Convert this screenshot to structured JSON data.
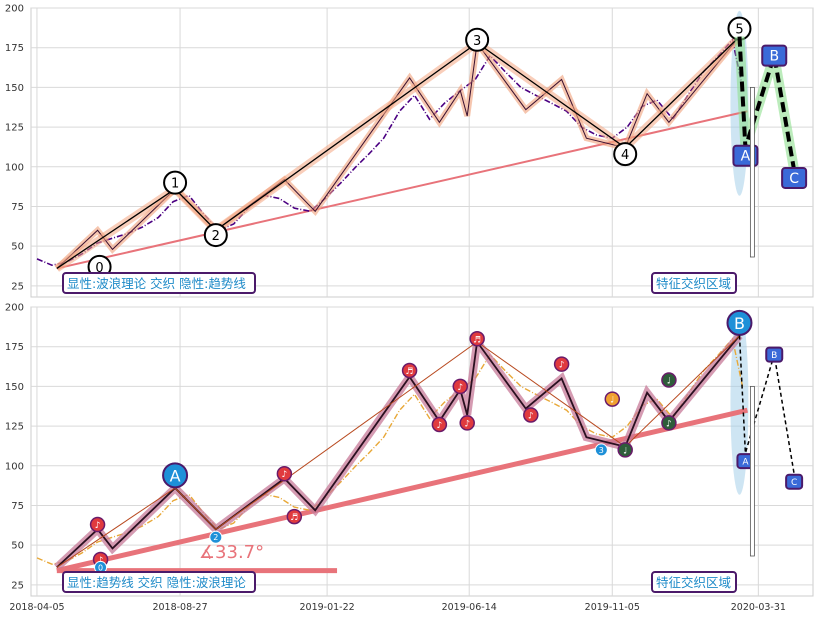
{
  "chart_data": [
    {
      "type": "line",
      "panel": "top",
      "ylim": [
        18,
        200
      ],
      "yticks": [
        25,
        50,
        75,
        100,
        125,
        150,
        175,
        200
      ],
      "xlim": [
        "2018-03-30",
        "2020-05-25"
      ],
      "grid": true,
      "legend": "bottom-left",
      "label_box_left": "显性:波浪理论 交织 隐性:趋势线",
      "label_box_right": "特征交织区域",
      "price_series": {
        "color": "#4b0082",
        "x": [
          "2018-04-05",
          "2018-04-20",
          "2018-05-05",
          "2018-05-20",
          "2018-06-05",
          "2018-06-20",
          "2018-07-05",
          "2018-07-20",
          "2018-08-05",
          "2018-08-20",
          "2018-09-05",
          "2018-09-20",
          "2018-10-05",
          "2018-10-20",
          "2018-11-05",
          "2018-11-20",
          "2018-12-05",
          "2018-12-20",
          "2019-01-05",
          "2019-01-20",
          "2019-02-05",
          "2019-02-20",
          "2019-03-05",
          "2019-03-20",
          "2019-04-05",
          "2019-04-20",
          "2019-05-05",
          "2019-05-20",
          "2019-06-05",
          "2019-06-20",
          "2019-07-05",
          "2019-07-20",
          "2019-08-05",
          "2019-08-20",
          "2019-09-05",
          "2019-09-20",
          "2019-10-05",
          "2019-10-20",
          "2019-11-05",
          "2019-11-20",
          "2019-12-05",
          "2019-12-20",
          "2020-01-05",
          "2020-01-20",
          "2020-02-05",
          "2020-02-20",
          "2020-03-05",
          "2020-03-15"
        ],
        "y": [
          42,
          38,
          40,
          45,
          52,
          55,
          58,
          62,
          68,
          78,
          82,
          70,
          60,
          64,
          75,
          82,
          80,
          74,
          72,
          80,
          90,
          100,
          108,
          118,
          135,
          145,
          130,
          140,
          148,
          155,
          170,
          160,
          150,
          145,
          140,
          135,
          125,
          120,
          118,
          125,
          138,
          142,
          130,
          145,
          160,
          170,
          180,
          150
        ]
      },
      "wave_points": [
        {
          "label": "0",
          "x": "2018-06-07",
          "y": 37
        },
        {
          "label": "1",
          "x": "2018-08-22",
          "y": 90
        },
        {
          "label": "2",
          "x": "2018-10-02",
          "y": 57
        },
        {
          "label": "3",
          "x": "2019-06-22",
          "y": 180
        },
        {
          "label": "4",
          "x": "2019-11-18",
          "y": 108
        },
        {
          "label": "5",
          "x": "2020-03-12",
          "y": 187
        }
      ],
      "wave_path": [
        {
          "x": "2018-04-25",
          "y": 36
        },
        {
          "x": "2018-08-22",
          "y": 86
        },
        {
          "x": "2018-10-02",
          "y": 60
        },
        {
          "x": "2019-06-22",
          "y": 178
        },
        {
          "x": "2019-11-18",
          "y": 112
        },
        {
          "x": "2020-03-12",
          "y": 182
        }
      ],
      "sub_wave_path": [
        {
          "x": "2018-04-25",
          "y": 36
        },
        {
          "x": "2018-06-05",
          "y": 60
        },
        {
          "x": "2018-06-20",
          "y": 48
        },
        {
          "x": "2018-08-22",
          "y": 86
        },
        {
          "x": "2018-10-02",
          "y": 60
        },
        {
          "x": "2018-12-10",
          "y": 92
        },
        {
          "x": "2019-01-10",
          "y": 72
        },
        {
          "x": "2019-04-15",
          "y": 156
        },
        {
          "x": "2019-05-15",
          "y": 128
        },
        {
          "x": "2019-06-05",
          "y": 148
        },
        {
          "x": "2019-06-12",
          "y": 132
        },
        {
          "x": "2019-06-22",
          "y": 178
        },
        {
          "x": "2019-08-10",
          "y": 136
        },
        {
          "x": "2019-09-15",
          "y": 155
        },
        {
          "x": "2019-10-10",
          "y": 118
        },
        {
          "x": "2019-11-18",
          "y": 112
        },
        {
          "x": "2019-12-10",
          "y": 146
        },
        {
          "x": "2020-01-01",
          "y": 128
        },
        {
          "x": "2020-03-12",
          "y": 182
        }
      ],
      "trendline": {
        "color": "#e8737a",
        "from": {
          "x": "2018-04-25",
          "y": 36
        },
        "to": {
          "x": "2020-03-20",
          "y": 135
        }
      },
      "abc_points": [
        {
          "label": "A",
          "x": "2020-03-18",
          "y": 112
        },
        {
          "label": "B",
          "x": "2020-04-16",
          "y": 170
        },
        {
          "label": "C",
          "x": "2020-05-06",
          "y": 98
        }
      ]
    },
    {
      "type": "line",
      "panel": "bottom",
      "ylim": [
        18,
        200
      ],
      "yticks": [
        25,
        50,
        75,
        100,
        125,
        150,
        175,
        200
      ],
      "xticks": [
        "2018-04-05",
        "2018-08-27",
        "2019-01-22",
        "2019-06-14",
        "2019-11-05",
        "2020-03-31"
      ],
      "xlim": [
        "2018-03-30",
        "2020-05-25"
      ],
      "grid": true,
      "legend": "bottom-left",
      "label_box_left": "显性:趋势线 交织 隐性:波浪理论",
      "label_box_right": "特征交织区域",
      "angle_label": "∡33.7°",
      "price_series": {
        "color": "#e8a838",
        "x": [
          "2018-04-05",
          "2018-04-20",
          "2018-05-05",
          "2018-05-20",
          "2018-06-05",
          "2018-06-20",
          "2018-07-05",
          "2018-07-20",
          "2018-08-05",
          "2018-08-20",
          "2018-09-05",
          "2018-09-20",
          "2018-10-05",
          "2018-10-20",
          "2018-11-05",
          "2018-11-20",
          "2018-12-05",
          "2018-12-20",
          "2019-01-05",
          "2019-01-20",
          "2019-02-05",
          "2019-02-20",
          "2019-03-05",
          "2019-03-20",
          "2019-04-05",
          "2019-04-20",
          "2019-05-05",
          "2019-05-20",
          "2019-06-05",
          "2019-06-20",
          "2019-07-05",
          "2019-07-20",
          "2019-08-05",
          "2019-08-20",
          "2019-09-05",
          "2019-09-20",
          "2019-10-05",
          "2019-10-20",
          "2019-11-05",
          "2019-11-20",
          "2019-12-05",
          "2019-12-20",
          "2020-01-05",
          "2020-01-20",
          "2020-02-05",
          "2020-02-20",
          "2020-03-05",
          "2020-03-15"
        ],
        "y": [
          42,
          38,
          40,
          45,
          52,
          55,
          58,
          62,
          68,
          78,
          82,
          70,
          60,
          64,
          75,
          82,
          80,
          74,
          72,
          80,
          90,
          100,
          108,
          118,
          135,
          145,
          130,
          140,
          148,
          155,
          170,
          160,
          150,
          145,
          140,
          135,
          125,
          120,
          118,
          125,
          138,
          142,
          130,
          145,
          160,
          170,
          180,
          150
        ]
      },
      "trend_path": [
        {
          "x": "2018-04-25",
          "y": 36
        },
        {
          "x": "2018-06-05",
          "y": 60
        },
        {
          "x": "2018-06-20",
          "y": 48
        },
        {
          "x": "2018-08-22",
          "y": 86
        },
        {
          "x": "2018-10-02",
          "y": 60
        },
        {
          "x": "2018-12-10",
          "y": 92
        },
        {
          "x": "2019-01-10",
          "y": 72
        },
        {
          "x": "2019-04-15",
          "y": 156
        },
        {
          "x": "2019-05-15",
          "y": 128
        },
        {
          "x": "2019-06-05",
          "y": 148
        },
        {
          "x": "2019-06-12",
          "y": 132
        },
        {
          "x": "2019-06-22",
          "y": 178
        },
        {
          "x": "2019-08-10",
          "y": 136
        },
        {
          "x": "2019-09-15",
          "y": 155
        },
        {
          "x": "2019-10-10",
          "y": 118
        },
        {
          "x": "2019-11-18",
          "y": 112
        },
        {
          "x": "2019-12-10",
          "y": 146
        },
        {
          "x": "2020-01-01",
          "y": 128
        },
        {
          "x": "2020-03-12",
          "y": 182
        }
      ],
      "wave_path": [
        {
          "x": "2018-04-25",
          "y": 36
        },
        {
          "x": "2018-08-22",
          "y": 86
        },
        {
          "x": "2018-10-02",
          "y": 60
        },
        {
          "x": "2019-06-22",
          "y": 178
        },
        {
          "x": "2019-11-18",
          "y": 112
        },
        {
          "x": "2020-03-12",
          "y": 182
        }
      ],
      "markers": [
        {
          "label": "♪",
          "x": "2018-06-05",
          "y": 63,
          "color": "#e03a3e"
        },
        {
          "label": "♪",
          "x": "2018-06-08",
          "y": 41,
          "color": "#e03a3e"
        },
        {
          "label": "♪",
          "x": "2018-12-10",
          "y": 95,
          "color": "#e03a3e"
        },
        {
          "label": "♬",
          "x": "2018-12-20",
          "y": 68,
          "color": "#e03a3e"
        },
        {
          "label": "♬",
          "x": "2019-04-15",
          "y": 160,
          "color": "#e03a3e"
        },
        {
          "label": "♪",
          "x": "2019-05-15",
          "y": 126,
          "color": "#e03a3e"
        },
        {
          "label": "♪",
          "x": "2019-06-05",
          "y": 150,
          "color": "#e03a3e"
        },
        {
          "label": "♪",
          "x": "2019-06-12",
          "y": 127,
          "color": "#e03a3e"
        },
        {
          "label": "♬",
          "x": "2019-06-22",
          "y": 180,
          "color": "#e03a3e"
        },
        {
          "label": "♪",
          "x": "2019-08-15",
          "y": 132,
          "color": "#e03a3e"
        },
        {
          "label": "♪",
          "x": "2019-09-15",
          "y": 164,
          "color": "#e03a3e"
        },
        {
          "label": "♩",
          "x": "2019-11-05",
          "y": 142,
          "color": "#f0a030"
        },
        {
          "label": "♩",
          "x": "2019-11-18",
          "y": 110,
          "color": "#2e5d3a"
        },
        {
          "label": "♩",
          "x": "2020-01-01",
          "y": 154,
          "color": "#2e5d3a"
        },
        {
          "label": "♪",
          "x": "2020-01-01",
          "y": 127,
          "color": "#2e5d3a"
        }
      ],
      "big_labels": [
        {
          "label": "A",
          "x": "2018-08-22",
          "y": 94
        },
        {
          "label": "B",
          "x": "2020-03-12",
          "y": 190
        }
      ],
      "small_labels": [
        {
          "label": "2",
          "x": "2018-10-02",
          "y": 55
        },
        {
          "label": "3",
          "x": "2019-10-25",
          "y": 110
        },
        {
          "label": "0",
          "x": "2018-06-08",
          "y": 36
        }
      ],
      "trendline": {
        "color": "#e8737a",
        "from": {
          "x": "2018-04-25",
          "y": 34
        },
        "to": {
          "x": "2020-03-20",
          "y": 135
        }
      },
      "abc_points": [
        {
          "label": "A",
          "x": "2020-03-18",
          "y": 108
        },
        {
          "label": "B",
          "x": "2020-04-16",
          "y": 170
        },
        {
          "label": "C",
          "x": "2020-05-06",
          "y": 95
        }
      ]
    }
  ]
}
